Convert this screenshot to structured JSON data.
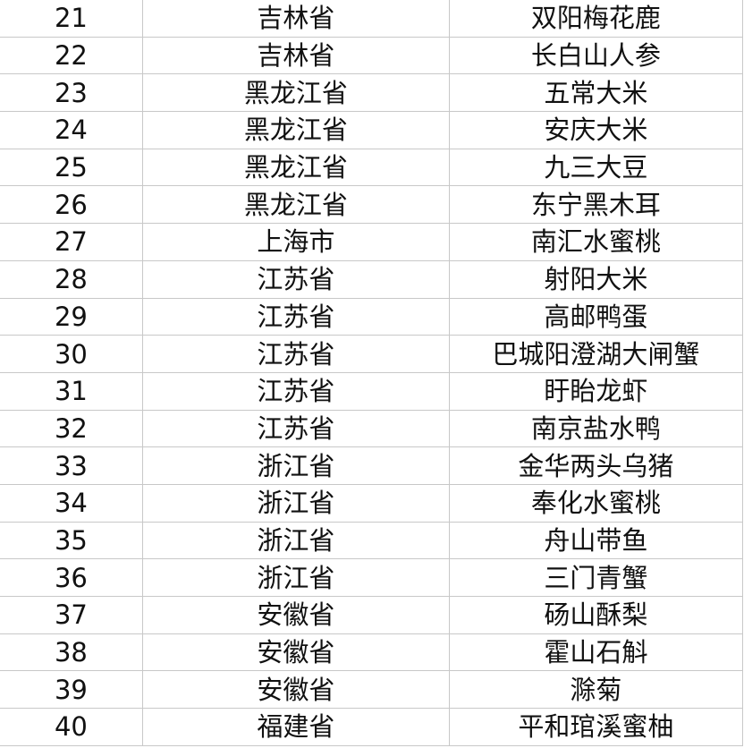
{
  "table": {
    "rows": [
      [
        21,
        "吉林省",
        "双阳梅花鹿"
      ],
      [
        22,
        "吉林省",
        "长白山人参"
      ],
      [
        23,
        "黑龙江省",
        "五常大米"
      ],
      [
        24,
        "黑龙江省",
        "安庆大米"
      ],
      [
        25,
        "黑龙江省",
        "九三大豆"
      ],
      [
        26,
        "黑龙江省",
        "东宁黑木耳"
      ],
      [
        27,
        "上海市",
        "南汇水蜜桃"
      ],
      [
        28,
        "江苏省",
        "射阳大米"
      ],
      [
        29,
        "江苏省",
        "高邮鸭蛋"
      ],
      [
        30,
        "江苏省",
        "巴城阳澄湖大闸蟹"
      ],
      [
        31,
        "江苏省",
        "盱眙龙虾"
      ],
      [
        32,
        "江苏省",
        "南京盐水鸭"
      ],
      [
        33,
        "浙江省",
        "金华两头乌猪"
      ],
      [
        34,
        "浙江省",
        "奉化水蜜桃"
      ],
      [
        35,
        "浙江省",
        "舟山带鱼"
      ],
      [
        36,
        "浙江省",
        "三门青蟹"
      ],
      [
        37,
        "安徽省",
        "砀山酥梨"
      ],
      [
        38,
        "安徽省",
        "霍山石斛"
      ],
      [
        39,
        "安徽省",
        "滁菊"
      ],
      [
        40,
        "福建省",
        "平和琯溪蜜柚"
      ]
    ]
  }
}
